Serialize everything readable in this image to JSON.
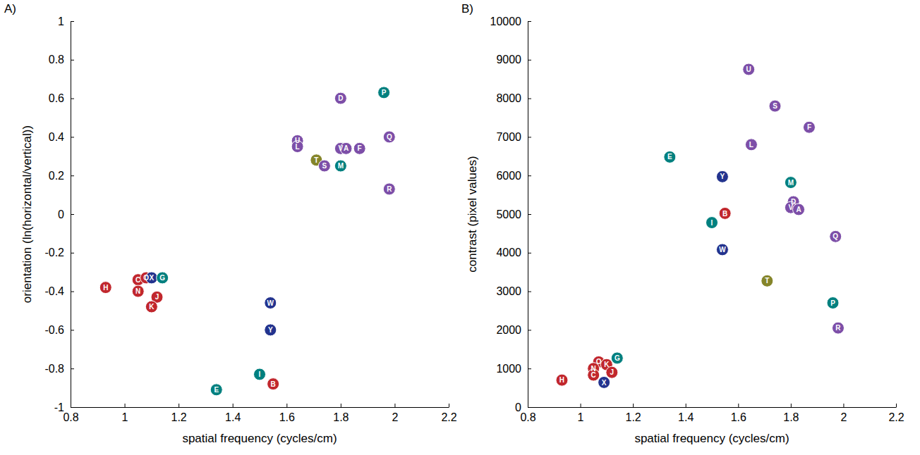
{
  "chart_data": [
    {
      "type": "scatter",
      "panel": "A)",
      "marker": "circle",
      "x_label": "spatial frequency (cycles/cm)",
      "y_label": "orientation (ln(horizontal/vertical))",
      "xlim": [
        0.8,
        2.2
      ],
      "xticks": [
        0.8,
        1,
        1.2,
        1.4,
        1.6,
        1.8,
        2,
        2.2
      ],
      "ylim": [
        -1,
        1
      ],
      "yticks": [
        -1,
        -0.8,
        -0.6,
        -0.4,
        -0.2,
        0,
        0.2,
        0.4,
        0.6,
        0.8,
        1
      ],
      "labels": [
        "H",
        "C",
        "O",
        "X",
        "G",
        "N",
        "J",
        "K",
        "W",
        "Y",
        "I",
        "B",
        "E",
        "D",
        "P",
        "U",
        "L",
        "V",
        "A",
        "F",
        "Q",
        "T",
        "S",
        "M",
        "R"
      ],
      "x": [
        0.93,
        1.05,
        1.08,
        1.1,
        1.14,
        1.05,
        1.12,
        1.1,
        1.54,
        1.54,
        1.5,
        1.55,
        1.34,
        1.8,
        1.96,
        1.64,
        1.64,
        1.8,
        1.82,
        1.87,
        1.98,
        1.71,
        1.74,
        1.8,
        1.98
      ],
      "values": [
        -0.38,
        -0.34,
        -0.33,
        -0.33,
        -0.33,
        -0.4,
        -0.43,
        -0.48,
        -0.46,
        -0.6,
        -0.83,
        -0.88,
        -0.91,
        0.6,
        0.63,
        0.38,
        0.35,
        0.34,
        0.34,
        0.34,
        0.4,
        0.28,
        0.25,
        0.25,
        0.13
      ],
      "colors": [
        "#c1272d",
        "#c1272d",
        "#c1272d",
        "#23338e",
        "#00807f",
        "#c1272d",
        "#c1272d",
        "#c1272d",
        "#23338e",
        "#23338e",
        "#00807f",
        "#c1272d",
        "#00807f",
        "#7d4fa8",
        "#00807f",
        "#7d4fa8",
        "#7d4fa8",
        "#7d4fa8",
        "#7d4fa8",
        "#7d4fa8",
        "#7d4fa8",
        "#85852a",
        "#7d4fa8",
        "#00807f",
        "#7d4fa8"
      ]
    },
    {
      "type": "scatter",
      "panel": "B)",
      "marker": "circle",
      "x_label": "spatial frequency (cycles/cm)",
      "y_label": "contrast (pixel values)",
      "xlim": [
        0.8,
        2.2
      ],
      "xticks": [
        0.8,
        1,
        1.2,
        1.4,
        1.6,
        1.8,
        2,
        2.2
      ],
      "ylim": [
        0,
        10000
      ],
      "yticks": [
        0,
        1000,
        2000,
        3000,
        4000,
        5000,
        6000,
        7000,
        8000,
        9000,
        10000
      ],
      "labels": [
        "U",
        "S",
        "F",
        "L",
        "E",
        "Y",
        "M",
        "D",
        "V",
        "A",
        "B",
        "I",
        "Q",
        "W",
        "T",
        "P",
        "R",
        "O",
        "K",
        "G",
        "N",
        "C",
        "J",
        "X",
        "H"
      ],
      "x": [
        1.64,
        1.74,
        1.87,
        1.65,
        1.34,
        1.54,
        1.8,
        1.81,
        1.8,
        1.83,
        1.55,
        1.5,
        1.97,
        1.54,
        1.71,
        1.96,
        1.98,
        1.07,
        1.1,
        1.14,
        1.05,
        1.05,
        1.12,
        1.09,
        0.93
      ],
      "values": [
        8750,
        7800,
        7250,
        6800,
        6480,
        5970,
        5820,
        5320,
        5170,
        5120,
        5020,
        4780,
        4420,
        4080,
        3270,
        2700,
        2050,
        1170,
        1100,
        1270,
        1000,
        830,
        900,
        640,
        700
      ],
      "colors": [
        "#7d4fa8",
        "#7d4fa8",
        "#7d4fa8",
        "#7d4fa8",
        "#00807f",
        "#23338e",
        "#00807f",
        "#7d4fa8",
        "#7d4fa8",
        "#7d4fa8",
        "#c1272d",
        "#00807f",
        "#7d4fa8",
        "#23338e",
        "#85852a",
        "#00807f",
        "#7d4fa8",
        "#c1272d",
        "#c1272d",
        "#00807f",
        "#c1272d",
        "#c1272d",
        "#c1272d",
        "#23338e",
        "#c1272d"
      ]
    }
  ]
}
